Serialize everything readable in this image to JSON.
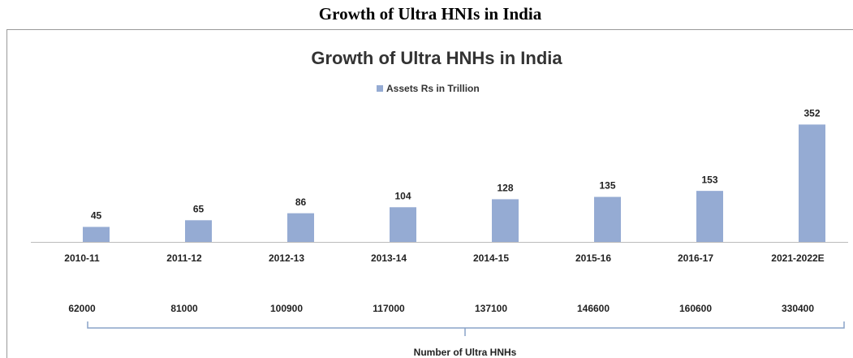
{
  "heading": "Growth of Ultra HNIs in India",
  "chart_data": {
    "type": "bar",
    "title": "Growth of Ultra HNHs in India",
    "categories": [
      "2010-11",
      "2011-12",
      "2012-13",
      "2013-14",
      "2014-15",
      "2015-16",
      "2016-17",
      "2021-2022E"
    ],
    "series": [
      {
        "name": "Assets Rs in Trillion",
        "color": "#95abd3",
        "values": [
          45,
          65,
          86,
          104,
          128,
          135,
          153,
          352
        ]
      }
    ],
    "ylim": [
      0,
      370
    ],
    "counts": {
      "label": "Number of Ultra HNHs",
      "values": [
        62000,
        81000,
        100900,
        117000,
        137100,
        146600,
        160600,
        330400
      ]
    }
  }
}
